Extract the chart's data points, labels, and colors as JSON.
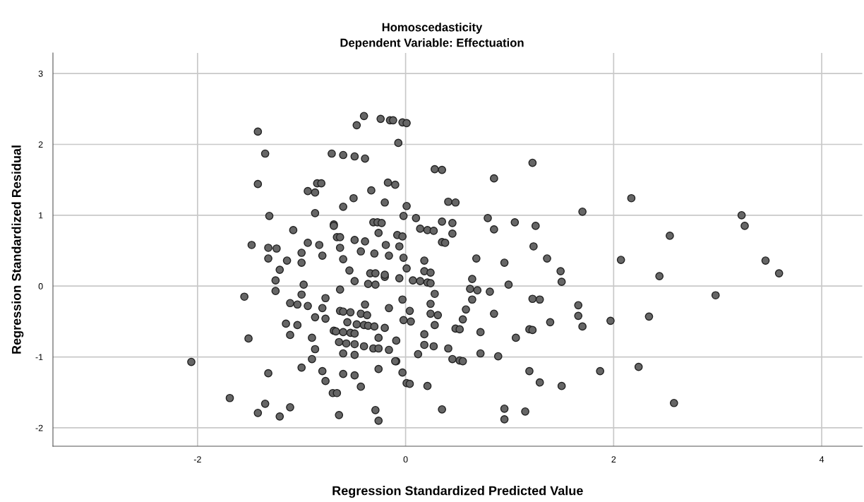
{
  "chart_data": {
    "type": "scatter",
    "title": "Homoscedasticity",
    "subtitle": "Dependent Variable: Effectuation",
    "xlabel": "Regression Standardized Predicted Value",
    "ylabel": "Regression Standardized Residual",
    "xlim": [
      -3.39,
      4.39
    ],
    "ylim": [
      -2.26,
      3.29
    ],
    "xticks": [
      -2,
      0,
      2,
      4
    ],
    "yticks": [
      -2,
      -1,
      0,
      1,
      2,
      3
    ],
    "grid": true,
    "marker": "circle",
    "legend": false,
    "series": [
      {
        "color": "#666666",
        "x": [
          -0.4,
          -0.47,
          -0.24,
          -0.15,
          -0.12,
          -0.03,
          0.01,
          -0.07,
          -1.42,
          -1.35,
          -1.42,
          -0.71,
          -0.6,
          -0.49,
          -0.39,
          -0.85,
          -0.81,
          -0.94,
          -0.87,
          -0.33,
          -0.5,
          -0.2,
          -0.6,
          -1.31,
          -0.87,
          -0.69,
          -1.08,
          -0.17,
          -0.1,
          0.01,
          -0.02,
          0.1,
          0.28,
          0.35,
          0.41,
          0.48,
          0.85,
          1.22,
          1.7,
          2.17,
          0.79,
          1.05,
          1.25,
          0.85,
          0.14,
          0.21,
          0.27,
          0.35,
          0.45,
          0.45,
          -0.08,
          -0.03,
          -0.06,
          0.35,
          0.38,
          1.23,
          -0.02,
          0.18,
          0.68,
          0.95,
          1.36,
          0.01,
          0.18,
          0.24,
          1.49,
          2.07,
          3.23,
          3.26,
          2.54,
          3.46,
          3.59,
          2.44,
          2.98,
          2.34,
          2.24,
          2.58,
          -0.06,
          0.07,
          0.14,
          0.21,
          0.24,
          0.64,
          0.99,
          1.5,
          0.28,
          0.62,
          0.69,
          0.81,
          -0.03,
          0.24,
          0.64,
          1.22,
          1.29,
          0.04,
          0.58,
          0.24,
          0.31,
          0.85,
          1.66,
          1.66,
          1.7,
          1.97,
          -0.02,
          0.05,
          0.55,
          1.39,
          0.28,
          0.48,
          0.52,
          0.72,
          1.19,
          1.22,
          0.18,
          -0.09,
          1.06,
          0.18,
          0.27,
          0.41,
          0.12,
          0.72,
          0.89,
          -0.09,
          0.45,
          0.52,
          0.55,
          -0.03,
          1.19,
          1.87,
          0.01,
          0.04,
          0.21,
          1.29,
          1.5,
          0.35,
          0.95,
          0.95,
          1.15,
          -2.06,
          -1.69,
          -1.35,
          -1.42,
          -1.21,
          -1.11,
          -1.32,
          -1.51,
          -1.55,
          -1.25,
          -1.25,
          -0.98,
          -1.0,
          -1.11,
          -1.04,
          -0.94,
          -0.77,
          -0.8,
          -0.63,
          -0.49,
          -0.36,
          -0.29,
          -0.2,
          -0.39,
          -0.16,
          -0.63,
          -0.6,
          -0.53,
          -0.43,
          -0.37,
          -0.87,
          -0.77,
          -1.15,
          -1.04,
          -0.56,
          -0.47,
          -0.4,
          -0.36,
          -0.3,
          -0.2,
          -0.69,
          -0.67,
          -0.6,
          -0.53,
          -0.49,
          -1.11,
          -0.9,
          -0.26,
          -0.64,
          -0.57,
          -0.49,
          -0.4,
          -0.31,
          -0.26,
          -0.16,
          -0.87,
          -0.6,
          -0.49,
          -0.9,
          -1.0,
          -0.8,
          -0.77,
          -0.6,
          -0.49,
          -0.26,
          -0.1,
          -0.43,
          -0.7,
          -0.66,
          -0.29,
          -0.26,
          -0.64,
          -0.69,
          -0.31,
          -0.27,
          -0.23,
          -0.66,
          -0.63,
          -0.26,
          -0.49,
          -0.39,
          -0.94,
          -0.83,
          -1.48,
          -1.32,
          -1.24,
          -0.19,
          -0.63,
          -0.43,
          -0.3,
          -0.16,
          -1.0,
          -0.8,
          -1.32,
          -1.14,
          -1.0,
          -0.6,
          -1.21,
          -0.54,
          -0.34,
          -0.29,
          -0.2
        ],
        "values": [
          2.4,
          2.27,
          2.36,
          2.34,
          2.34,
          2.31,
          2.3,
          2.02,
          2.18,
          1.87,
          1.44,
          1.87,
          1.85,
          1.83,
          1.8,
          1.45,
          1.45,
          1.34,
          1.32,
          1.35,
          1.24,
          1.18,
          1.12,
          0.99,
          1.03,
          0.87,
          0.79,
          1.46,
          1.43,
          1.13,
          0.99,
          0.96,
          1.65,
          1.64,
          1.19,
          1.18,
          1.52,
          1.74,
          1.05,
          1.24,
          0.96,
          0.9,
          0.85,
          0.8,
          0.81,
          0.79,
          0.78,
          0.91,
          0.89,
          0.74,
          0.72,
          0.7,
          0.56,
          0.62,
          0.61,
          0.56,
          0.4,
          0.36,
          0.39,
          0.33,
          0.39,
          0.25,
          0.21,
          0.19,
          0.21,
          0.37,
          1.0,
          0.85,
          0.71,
          0.36,
          0.18,
          0.14,
          -0.13,
          -0.43,
          -1.14,
          -1.65,
          0.11,
          0.08,
          0.07,
          0.05,
          0.04,
          0.1,
          0.02,
          0.06,
          -0.11,
          -0.04,
          -0.06,
          -0.08,
          -0.19,
          -0.25,
          -0.19,
          -0.18,
          -0.19,
          -0.35,
          -0.33,
          -0.39,
          -0.41,
          -0.39,
          -0.27,
          -0.42,
          -0.57,
          -0.49,
          -0.48,
          -0.5,
          -0.47,
          -0.51,
          -0.55,
          -0.6,
          -0.61,
          -0.65,
          -0.61,
          -0.62,
          -0.68,
          -0.77,
          -0.73,
          -0.83,
          -0.85,
          -0.88,
          -0.96,
          -0.95,
          -0.99,
          -1.06,
          -1.03,
          -1.05,
          -1.06,
          -1.22,
          -1.2,
          -1.2,
          -1.37,
          -1.38,
          -1.41,
          -1.36,
          -1.41,
          -1.74,
          -1.73,
          -1.88,
          -1.77,
          -1.07,
          -1.58,
          -1.66,
          -1.79,
          -1.84,
          -1.71,
          -1.23,
          -0.74,
          -0.15,
          0.08,
          -0.07,
          0.02,
          -0.12,
          -0.24,
          -0.26,
          -0.28,
          -0.17,
          -0.31,
          -0.05,
          0.07,
          0.03,
          0.02,
          0.13,
          -0.26,
          -0.31,
          -0.35,
          -0.36,
          -0.37,
          -0.39,
          -0.41,
          -0.44,
          -0.46,
          -0.53,
          -0.55,
          -0.51,
          -0.54,
          -0.55,
          -0.56,
          -0.57,
          -0.59,
          -0.63,
          -0.64,
          -0.65,
          -0.66,
          -0.67,
          -0.69,
          -0.73,
          -0.73,
          -0.79,
          -0.81,
          -0.82,
          -0.85,
          -0.88,
          -0.88,
          -0.9,
          -0.89,
          -0.95,
          -0.97,
          -1.03,
          -1.15,
          -1.2,
          -1.34,
          -1.24,
          -1.26,
          -1.17,
          -1.06,
          -1.42,
          -1.51,
          -1.51,
          -1.75,
          -1.9,
          -1.82,
          0.85,
          0.9,
          0.9,
          0.89,
          0.69,
          0.69,
          0.75,
          0.65,
          0.63,
          0.61,
          0.58,
          0.58,
          0.54,
          0.53,
          0.58,
          0.54,
          0.49,
          0.46,
          0.43,
          0.47,
          0.43,
          0.39,
          0.36,
          0.33,
          0.38,
          0.23,
          0.22,
          0.18,
          0.18,
          0.16
        ]
      }
    ]
  }
}
